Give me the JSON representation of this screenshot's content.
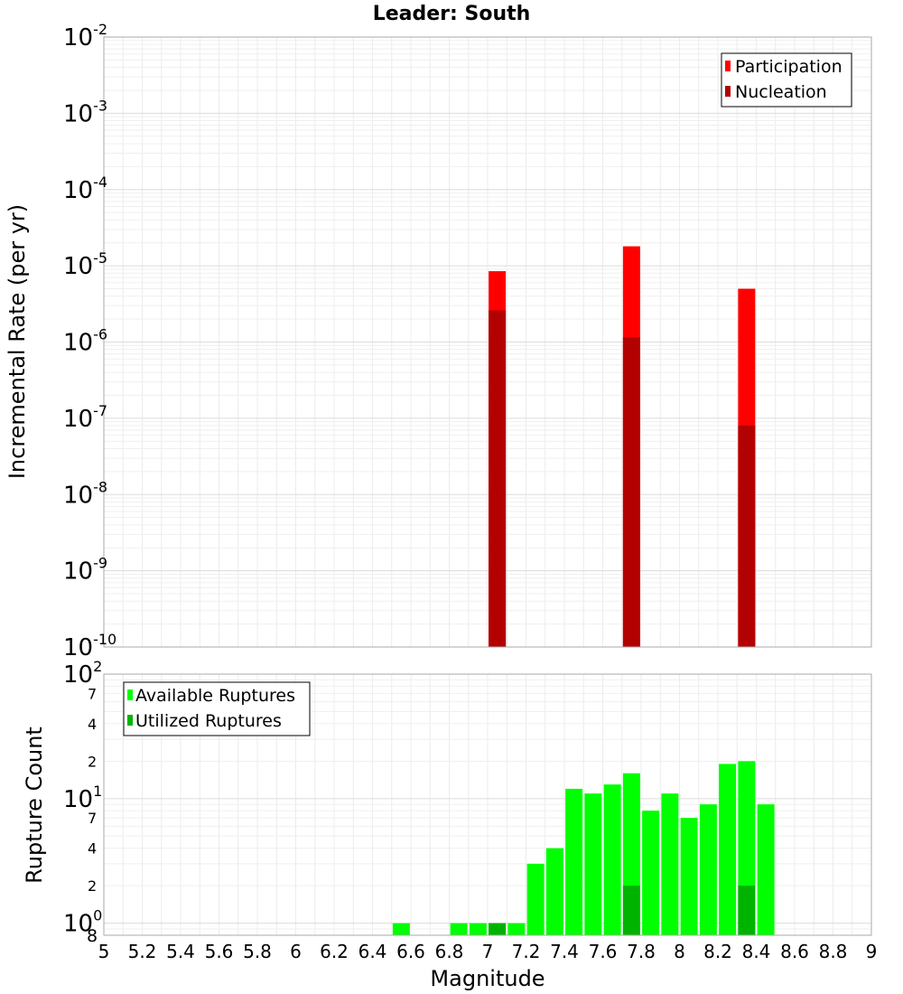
{
  "title": "Leader: South",
  "xlabel": "Magnitude",
  "x_ticks": [
    "5",
    "5.2",
    "5.4",
    "5.6",
    "5.8",
    "6",
    "6.2",
    "6.4",
    "6.6",
    "6.8",
    "7",
    "7.2",
    "7.4",
    "7.6",
    "7.8",
    "8",
    "8.2",
    "8.4",
    "8.6",
    "8.8",
    "9"
  ],
  "chart_data": [
    {
      "type": "bar",
      "scale": "log",
      "ylabel": "Incremental Rate (per yr)",
      "xlim": [
        5,
        9
      ],
      "ylim": [
        1e-10,
        0.01
      ],
      "y_ticks": [
        {
          "exp": "-10"
        },
        {
          "exp": "-9"
        },
        {
          "exp": "-8"
        },
        {
          "exp": "-7"
        },
        {
          "exp": "-6"
        },
        {
          "exp": "-5"
        },
        {
          "exp": "-4"
        },
        {
          "exp": "-3"
        },
        {
          "exp": "-2"
        }
      ],
      "legend": "top-right",
      "series": [
        {
          "name": "Participation",
          "color": "#ff0000",
          "points": [
            {
              "x": 7.05,
              "y": 8.5e-06
            },
            {
              "x": 7.75,
              "y": 1.8e-05
            },
            {
              "x": 8.35,
              "y": 5e-06
            }
          ]
        },
        {
          "name": "Nucleation",
          "color": "#b30000",
          "points": [
            {
              "x": 7.05,
              "y": 2.6e-06
            },
            {
              "x": 7.75,
              "y": 1.15e-06
            },
            {
              "x": 8.35,
              "y": 8e-08
            }
          ]
        }
      ]
    },
    {
      "type": "bar",
      "scale": "log",
      "ylabel": "Rupture Count",
      "xlim": [
        5,
        9
      ],
      "ylim": [
        0.8,
        100
      ],
      "y_ticks": [
        {
          "base": "10",
          "exp": "0",
          "minor": "8"
        },
        {
          "minor": "2"
        },
        {
          "minor": "4"
        },
        {
          "minor": "7"
        },
        {
          "base": "10",
          "exp": "1"
        },
        {
          "minor": "2"
        },
        {
          "minor": "4"
        },
        {
          "minor": "7"
        },
        {
          "base": "10",
          "exp": "2"
        }
      ],
      "legend": "top-left",
      "series": [
        {
          "name": "Available Ruptures",
          "color": "#00ff00",
          "points": [
            {
              "x": 6.55,
              "y": 1
            },
            {
              "x": 6.85,
              "y": 1
            },
            {
              "x": 6.95,
              "y": 1
            },
            {
              "x": 7.05,
              "y": 1
            },
            {
              "x": 7.15,
              "y": 1
            },
            {
              "x": 7.25,
              "y": 3
            },
            {
              "x": 7.35,
              "y": 4
            },
            {
              "x": 7.45,
              "y": 12
            },
            {
              "x": 7.55,
              "y": 11
            },
            {
              "x": 7.65,
              "y": 13
            },
            {
              "x": 7.75,
              "y": 16
            },
            {
              "x": 7.85,
              "y": 8
            },
            {
              "x": 7.95,
              "y": 11
            },
            {
              "x": 8.05,
              "y": 7
            },
            {
              "x": 8.15,
              "y": 9
            },
            {
              "x": 8.25,
              "y": 19
            },
            {
              "x": 8.35,
              "y": 20
            },
            {
              "x": 8.45,
              "y": 9
            }
          ]
        },
        {
          "name": "Utilized Ruptures",
          "color": "#00b300",
          "points": [
            {
              "x": 7.05,
              "y": 1
            },
            {
              "x": 7.75,
              "y": 2
            },
            {
              "x": 8.35,
              "y": 2
            }
          ]
        }
      ]
    }
  ]
}
